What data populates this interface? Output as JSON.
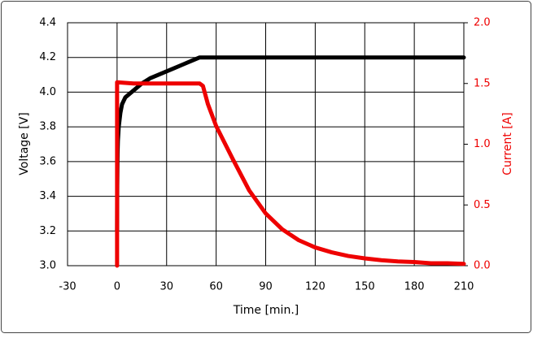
{
  "chart_data": {
    "type": "line",
    "xlabel": "Time [min.]",
    "ylabel": "Voltage [V]",
    "y2label": "Current [A]",
    "xlim": [
      -30,
      210
    ],
    "xticks": [
      -30,
      0,
      30,
      60,
      90,
      120,
      150,
      180,
      210
    ],
    "ylim": [
      3.0,
      4.4
    ],
    "yticks": [
      {
        "value": 3.0,
        "label": "3.0"
      },
      3.2,
      3.4,
      3.6,
      3.8,
      {
        "value": 4.0,
        "label": "4.0"
      },
      4.2,
      4.4
    ],
    "y2lim": [
      0,
      2.0
    ],
    "y2ticks": [
      {
        "value": 0,
        "label": "0.0"
      },
      0.5,
      {
        "value": 1,
        "label": "1.0"
      },
      1.5,
      {
        "value": 2,
        "label": "2.0"
      }
    ],
    "grid": true,
    "y2color": "#ee0000",
    "series": [
      {
        "name": "Voltage",
        "color": "#000000",
        "x": [
          0,
          0.1,
          0.2,
          0.3,
          0.5,
          1,
          2,
          3,
          5,
          10,
          15,
          20,
          25,
          30,
          35,
          40,
          45,
          50,
          60,
          90,
          120,
          150,
          180,
          210
        ],
        "values": [
          3.2,
          3.46,
          3.57,
          3.65,
          3.72,
          3.8,
          3.88,
          3.93,
          3.97,
          4.01,
          4.05,
          4.08,
          4.1,
          4.12,
          4.14,
          4.16,
          4.18,
          4.2,
          4.2,
          4.2,
          4.2,
          4.2,
          4.2,
          4.2
        ]
      },
      {
        "name": "Current",
        "color": "#ee0000",
        "axis": "y2",
        "x": [
          0,
          0,
          10,
          30,
          50,
          52,
          55,
          60,
          70,
          80,
          90,
          100,
          110,
          120,
          130,
          140,
          150,
          160,
          170,
          180,
          190,
          200,
          210
        ],
        "values": [
          0,
          1.51,
          1.5,
          1.5,
          1.5,
          1.48,
          1.33,
          1.15,
          0.88,
          0.62,
          0.43,
          0.3,
          0.21,
          0.15,
          0.11,
          0.08,
          0.06,
          0.045,
          0.035,
          0.03,
          0.02,
          0.02,
          0.015
        ]
      }
    ]
  }
}
